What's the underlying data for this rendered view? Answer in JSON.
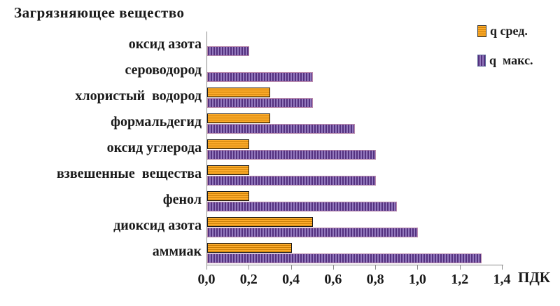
{
  "title": "Загрязняющее вещество",
  "legend": {
    "items": [
      {
        "label": "q сред.",
        "key": "avg"
      },
      {
        "label": "q  макс.",
        "key": "max"
      }
    ]
  },
  "axis": {
    "unit_label": "ПДК",
    "tick_labels": [
      "0,0",
      "0,2",
      "0,4",
      "0,6",
      "0,8",
      "1,0",
      "1,2",
      "1,4"
    ],
    "tick_values": [
      0,
      0.2,
      0.4,
      0.6,
      0.8,
      1.0,
      1.2,
      1.4
    ]
  },
  "colors": {
    "avg_fill": "#FCA928",
    "avg_stripe": "#C87C04",
    "avg_border": "#1A1A1A",
    "max_stripe_dark": "#54317F",
    "max_stripe_light": "#9379BD",
    "max_border": "#BB8BAD",
    "axis_line": "#8A8A8A",
    "text": "#1A1A1A",
    "background": "#FFFFFF"
  },
  "chart_data": {
    "type": "bar",
    "orientation": "horizontal",
    "title": "Загрязняющее вещество",
    "xlabel": "ПДК",
    "ylabel": "Загрязняющее вещество",
    "xlim": [
      0,
      1.4
    ],
    "grid": false,
    "legend_position": "top-right",
    "bar_pattern_note": "avg bars orange with horizontal stripes, max bars purple with vertical stripes",
    "categories": [
      "оксид азота",
      "сероводород",
      "хлористый  водород",
      "формальдегид",
      "оксид углерода",
      "взвешенные  вещества",
      "фенол",
      "диоксид азота",
      "аммиак"
    ],
    "series": [
      {
        "name": "q сред.",
        "color": "#FCA928",
        "pattern": "horizontal-stripes",
        "values": [
          null,
          null,
          0.3,
          0.3,
          0.2,
          0.2,
          0.2,
          0.5,
          0.4
        ]
      },
      {
        "name": "q  макс.",
        "color": "#6A4A9E",
        "pattern": "vertical-stripes",
        "values": [
          0.2,
          0.5,
          0.5,
          0.7,
          0.8,
          0.8,
          0.9,
          1.0,
          1.3
        ]
      }
    ]
  }
}
